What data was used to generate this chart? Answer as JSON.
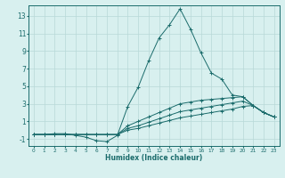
{
  "xlabel": "Humidex (Indice chaleur)",
  "background_color": "#d8f0ef",
  "grid_color": "#b8d8d8",
  "line_color": "#1a6b6b",
  "xlim": [
    -0.5,
    23.5
  ],
  "ylim": [
    -1.8,
    14.2
  ],
  "xticks": [
    0,
    1,
    2,
    3,
    4,
    5,
    6,
    7,
    8,
    9,
    10,
    11,
    12,
    13,
    14,
    15,
    16,
    17,
    18,
    19,
    20,
    21,
    22,
    23
  ],
  "yticks": [
    -1,
    1,
    3,
    5,
    7,
    9,
    11,
    13
  ],
  "series": [
    {
      "x": [
        0,
        1,
        2,
        3,
        4,
        5,
        6,
        7,
        8,
        9,
        10,
        11,
        12,
        13,
        14,
        15,
        16,
        17,
        18,
        19,
        20,
        21,
        22,
        23
      ],
      "y": [
        -0.5,
        -0.5,
        -0.4,
        -0.4,
        -0.6,
        -0.8,
        -1.2,
        -1.3,
        -0.6,
        2.7,
        4.9,
        7.9,
        10.5,
        12.0,
        13.8,
        11.5,
        8.8,
        6.5,
        5.8,
        4.0,
        3.8,
        2.8,
        2.0,
        1.5
      ]
    },
    {
      "x": [
        0,
        1,
        2,
        3,
        4,
        5,
        6,
        7,
        8,
        9,
        10,
        11,
        12,
        13,
        14,
        15,
        16,
        17,
        18,
        19,
        20,
        21,
        22,
        23
      ],
      "y": [
        -0.5,
        -0.5,
        -0.5,
        -0.5,
        -0.5,
        -0.5,
        -0.5,
        -0.5,
        -0.5,
        0.5,
        1.0,
        1.5,
        2.0,
        2.5,
        3.0,
        3.2,
        3.4,
        3.5,
        3.6,
        3.7,
        3.8,
        2.8,
        2.0,
        1.5
      ]
    },
    {
      "x": [
        0,
        1,
        2,
        3,
        4,
        5,
        6,
        7,
        8,
        9,
        10,
        11,
        12,
        13,
        14,
        15,
        16,
        17,
        18,
        19,
        20,
        21,
        22,
        23
      ],
      "y": [
        -0.5,
        -0.5,
        -0.5,
        -0.5,
        -0.5,
        -0.5,
        -0.5,
        -0.5,
        -0.5,
        0.2,
        0.5,
        0.9,
        1.3,
        1.7,
        2.1,
        2.3,
        2.5,
        2.7,
        2.9,
        3.1,
        3.3,
        2.8,
        2.0,
        1.5
      ]
    },
    {
      "x": [
        0,
        1,
        2,
        3,
        4,
        5,
        6,
        7,
        8,
        9,
        10,
        11,
        12,
        13,
        14,
        15,
        16,
        17,
        18,
        19,
        20,
        21,
        22,
        23
      ],
      "y": [
        -0.5,
        -0.5,
        -0.5,
        -0.5,
        -0.5,
        -0.5,
        -0.5,
        -0.5,
        -0.5,
        0.0,
        0.2,
        0.5,
        0.8,
        1.1,
        1.4,
        1.6,
        1.8,
        2.0,
        2.2,
        2.4,
        2.7,
        2.8,
        2.0,
        1.5
      ]
    }
  ]
}
